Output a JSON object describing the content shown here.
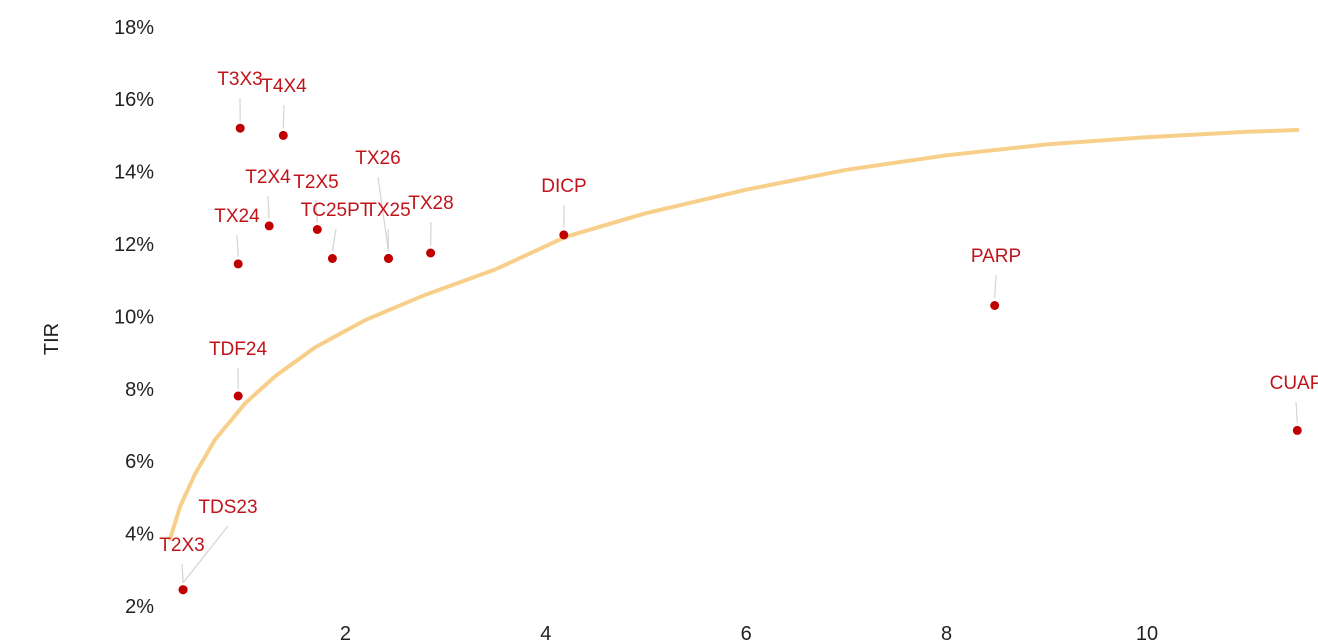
{
  "chart_data": {
    "type": "scatter",
    "title": "",
    "xlabel": "",
    "ylabel": "TIR",
    "xlim": [
      0,
      11.5
    ],
    "ylim": [
      1.6,
      18.3
    ],
    "xticks": [
      2,
      4,
      6,
      8,
      10
    ],
    "yticks": [
      2,
      4,
      6,
      8,
      10,
      12,
      14,
      16,
      18
    ],
    "ytick_suffix": "%",
    "grid": false,
    "colors": {
      "points": "#c00000",
      "labels": "#c0141a",
      "trend": "#f8cf8a",
      "leaders": "#d4d4d4"
    },
    "points": [
      {
        "label": "T3X3",
        "x": 0.95,
        "y": 15.2
      },
      {
        "label": "T4X4",
        "x": 1.38,
        "y": 15.0
      },
      {
        "label": "T2X4",
        "x": 1.24,
        "y": 12.5
      },
      {
        "label": "T2X5",
        "x": 1.72,
        "y": 12.4
      },
      {
        "label": "TX24",
        "x": 0.93,
        "y": 11.45
      },
      {
        "label": "TC25PT",
        "x": 1.87,
        "y": 11.6
      },
      {
        "label": "TX25",
        "x": 2.43,
        "y": 11.6
      },
      {
        "label": "TX26",
        "x": 2.43,
        "y": 11.6
      },
      {
        "label": "TX28",
        "x": 2.85,
        "y": 11.75
      },
      {
        "label": "DICP",
        "x": 4.18,
        "y": 12.25
      },
      {
        "label": "PARP",
        "x": 8.48,
        "y": 10.3
      },
      {
        "label": "CUAP",
        "x": 11.5,
        "y": 6.85
      },
      {
        "label": "TDF24",
        "x": 0.93,
        "y": 7.8
      },
      {
        "label": "TDS23",
        "x": 0.38,
        "y": 2.45
      },
      {
        "label": "T2X3",
        "x": 0.38,
        "y": 2.45
      }
    ],
    "trend": {
      "type": "logarithmic",
      "points": [
        {
          "x": 0.25,
          "y": 3.85
        },
        {
          "x": 0.35,
          "y": 4.75
        },
        {
          "x": 0.5,
          "y": 5.65
        },
        {
          "x": 0.7,
          "y": 6.6
        },
        {
          "x": 1.0,
          "y": 7.6
        },
        {
          "x": 1.3,
          "y": 8.35
        },
        {
          "x": 1.7,
          "y": 9.15
        },
        {
          "x": 2.2,
          "y": 9.9
        },
        {
          "x": 2.8,
          "y": 10.6
        },
        {
          "x": 3.5,
          "y": 11.3
        },
        {
          "x": 4.2,
          "y": 12.2
        },
        {
          "x": 5.0,
          "y": 12.85
        },
        {
          "x": 6.0,
          "y": 13.5
        },
        {
          "x": 7.0,
          "y": 14.05
        },
        {
          "x": 8.0,
          "y": 14.45
        },
        {
          "x": 9.0,
          "y": 14.75
        },
        {
          "x": 10.0,
          "y": 14.95
        },
        {
          "x": 11.0,
          "y": 15.1
        },
        {
          "x": 11.5,
          "y": 15.15
        }
      ]
    }
  }
}
